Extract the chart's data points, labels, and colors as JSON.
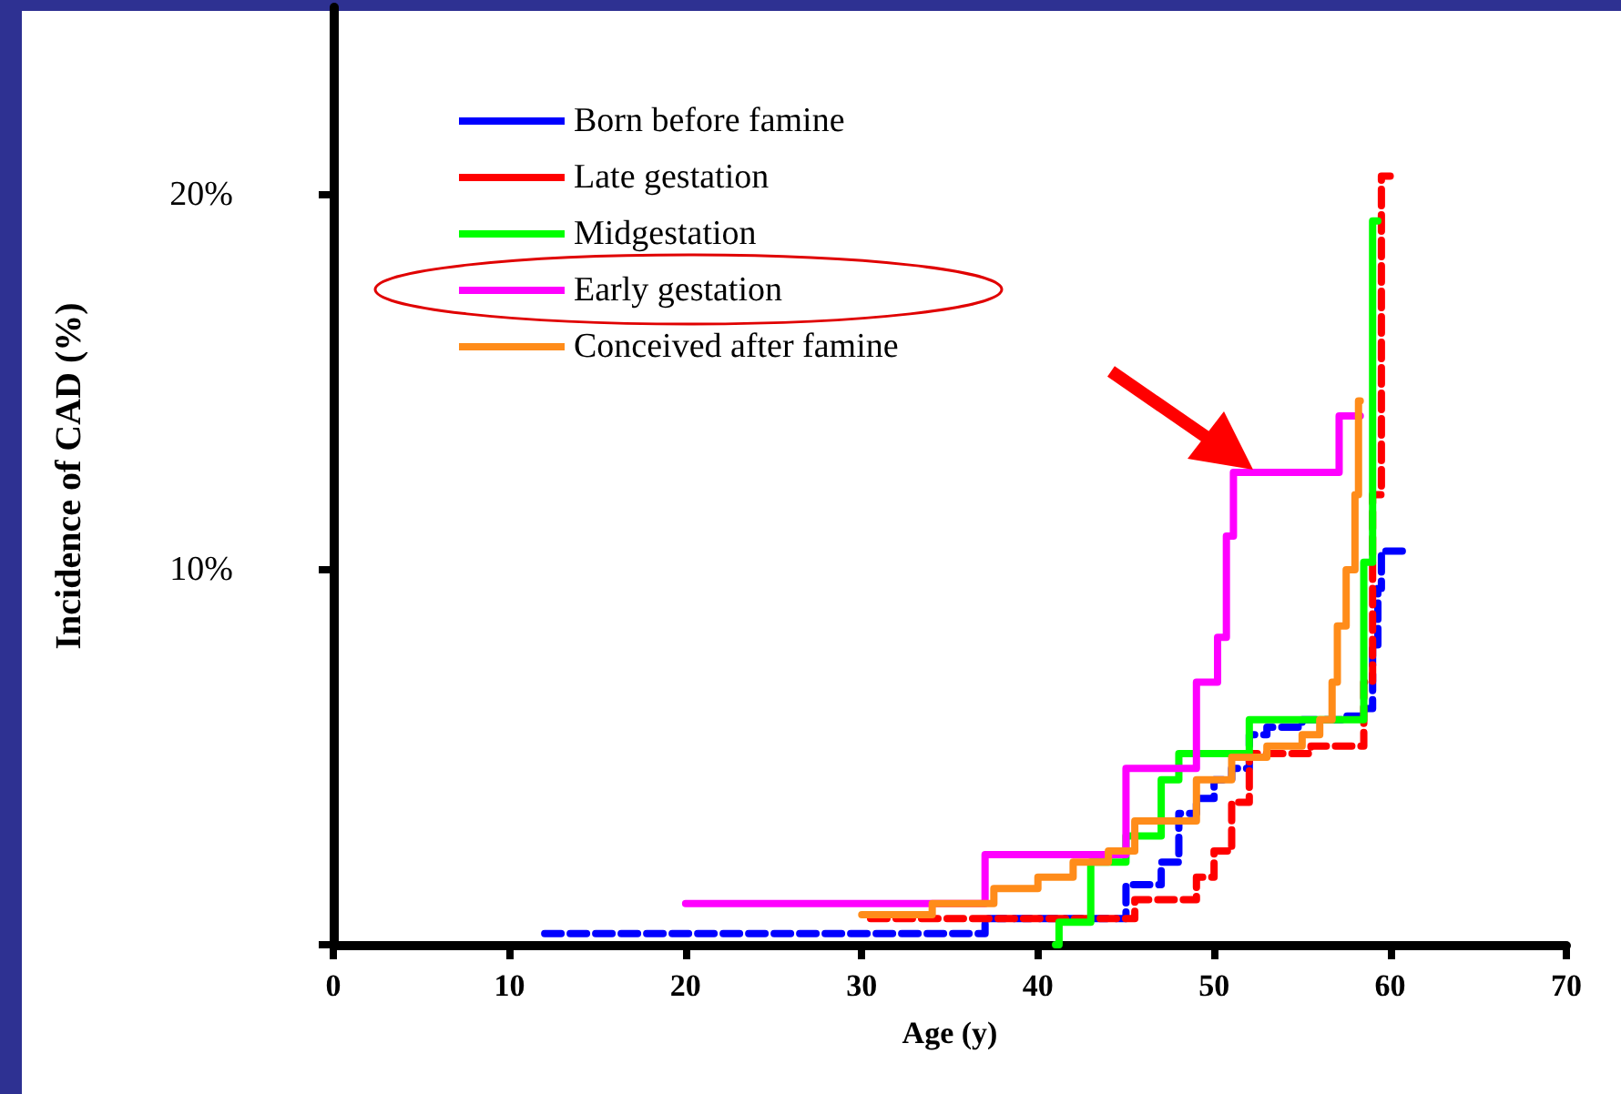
{
  "chart_data": {
    "type": "step",
    "xlabel": "Age (y)",
    "ylabel": "Incidence of CAD (%)",
    "xlim": [
      0,
      70
    ],
    "xticks": [
      0,
      10,
      20,
      30,
      40,
      50,
      60,
      70
    ],
    "ylim": [
      0,
      25
    ],
    "yticks": [
      {
        "value": 0,
        "label": null
      },
      {
        "value": 10,
        "label": "10%"
      },
      {
        "value": 20,
        "label": "20%"
      }
    ],
    "grid": false,
    "legend": "top left",
    "marker": "none",
    "series": [
      {
        "name": "Born before famine",
        "color": "#0000ff",
        "line_style": "dashed",
        "x": [
          12,
          37,
          45,
          47,
          48,
          49,
          50,
          51,
          52,
          53,
          55,
          57.5,
          58.5,
          59,
          59.3,
          59.5,
          61
        ],
        "values": [
          0.3,
          0.7,
          1.6,
          2.2,
          3.5,
          3.9,
          4.4,
          4.7,
          5.6,
          5.8,
          6.0,
          6.1,
          6.3,
          8.0,
          9.5,
          10.5,
          10.5
        ]
      },
      {
        "name": "Late gestation",
        "color": "#ff0000",
        "line_style": "dashed",
        "x": [
          30.5,
          45.5,
          47.5,
          49,
          50,
          51,
          52,
          55.5,
          58.5,
          59,
          59.5,
          60
        ],
        "values": [
          0.7,
          1.2,
          1.2,
          1.8,
          2.5,
          3.8,
          5.1,
          5.3,
          7.0,
          12.0,
          20.5,
          20.5
        ]
      },
      {
        "name": "Midgestation",
        "color": "#00ff00",
        "line_style": "solid",
        "x": [
          41,
          41.2,
          43,
          45,
          47,
          48,
          52,
          58.5,
          59,
          59.3
        ],
        "values": [
          0,
          0.6,
          2.2,
          2.9,
          4.4,
          5.1,
          6.0,
          10.2,
          19.3,
          19.3
        ]
      },
      {
        "name": "Early gestation",
        "color": "#ff00ff",
        "line_style": "solid",
        "x": [
          20,
          37,
          45,
          49,
          50.2,
          50.7,
          51.1,
          57.1,
          58.3
        ],
        "values": [
          1.1,
          2.4,
          4.7,
          7.0,
          8.2,
          10.9,
          12.6,
          14.1,
          14.1
        ]
      },
      {
        "name": "Conceived after famine",
        "color": "#ff8c1a",
        "line_style": "solid",
        "x": [
          30,
          34,
          37.5,
          40,
          42,
          44,
          45.5,
          49,
          51,
          53,
          55,
          56,
          56.7,
          57,
          57.5,
          58,
          58.2,
          58.3
        ],
        "values": [
          0.8,
          1.1,
          1.5,
          1.8,
          2.2,
          2.5,
          3.3,
          4.4,
          5.0,
          5.3,
          5.6,
          6.0,
          7.0,
          8.5,
          10.0,
          12.0,
          14.5,
          14.5
        ]
      }
    ]
  }
}
